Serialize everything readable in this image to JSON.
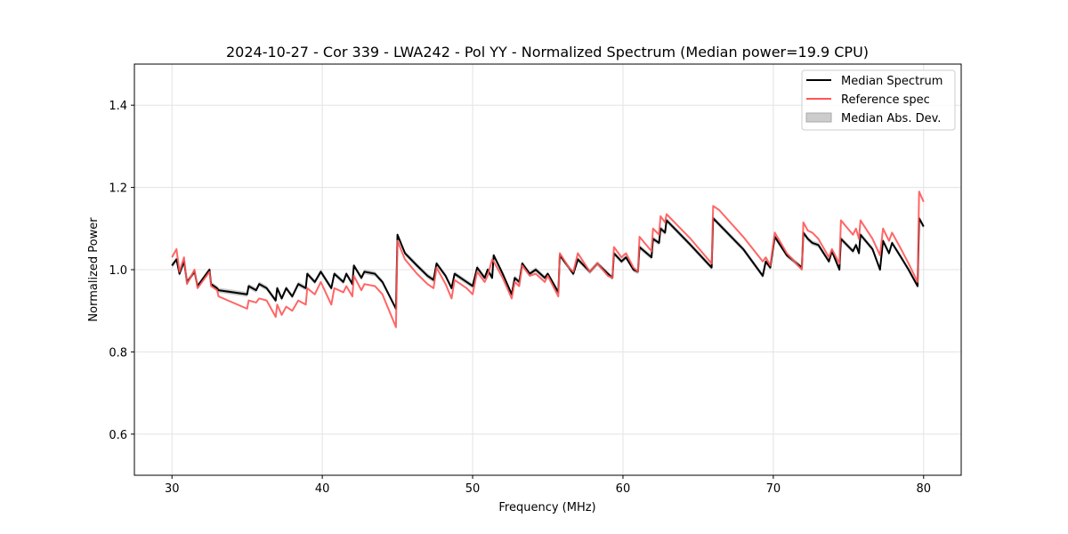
{
  "chart_data": {
    "type": "line",
    "title": "2024-10-27 - Cor 339 - LWA242 - Pol YY - Normalized Spectrum (Median power=19.9 CPU)",
    "xlabel": "Frequency (MHz)",
    "ylabel": "Normalized Power",
    "xlim": [
      27.5,
      82.5
    ],
    "ylim": [
      0.5,
      1.5
    ],
    "xticks": [
      30,
      40,
      50,
      60,
      70,
      80
    ],
    "xtick_labels": [
      "30",
      "40",
      "50",
      "60",
      "70",
      "80"
    ],
    "yticks": [
      0.6,
      0.8,
      1.0,
      1.2,
      1.4
    ],
    "ytick_labels": [
      "0.6",
      "0.8",
      "1.0",
      "1.2",
      "1.4"
    ],
    "grid": true,
    "legend_position": "top-right",
    "legend": [
      "Median Spectrum",
      "Reference spec",
      "Median Abs. Dev."
    ],
    "colors": {
      "median": "#000000",
      "reference": "#ff5555",
      "mad": "#b0b0b0"
    },
    "mad_halfwidth": 0.006,
    "x": [
      30.0,
      30.3,
      30.5,
      30.8,
      31.0,
      31.5,
      31.7,
      32.5,
      32.6,
      33.0,
      33.1,
      35.0,
      35.1,
      35.6,
      35.8,
      36.3,
      36.9,
      37.0,
      37.3,
      37.6,
      38.0,
      38.4,
      38.9,
      39.0,
      39.5,
      39.9,
      40.6,
      40.8,
      41.4,
      41.6,
      42.0,
      42.1,
      42.6,
      42.8,
      43.5,
      44.0,
      44.9,
      45.0,
      45.5,
      46.3,
      47.0,
      47.4,
      47.6,
      48.2,
      48.6,
      48.8,
      49.6,
      50.0,
      50.3,
      50.8,
      51.0,
      51.3,
      51.4,
      52.0,
      52.6,
      52.8,
      53.1,
      53.3,
      53.8,
      54.2,
      54.8,
      55.0,
      55.7,
      55.8,
      56.4,
      56.7,
      57.0,
      57.8,
      58.3,
      59.0,
      59.3,
      59.4,
      59.9,
      60.2,
      60.7,
      61.0,
      61.1,
      61.9,
      62.0,
      62.4,
      62.5,
      62.8,
      62.9,
      64.5,
      65.9,
      66.0,
      66.4,
      68.0,
      69.3,
      69.5,
      69.8,
      70.1,
      70.9,
      71.9,
      72.0,
      72.3,
      72.6,
      73.0,
      73.7,
      73.9,
      74.4,
      74.5,
      75.3,
      75.5,
      75.7,
      75.8,
      76.6,
      77.1,
      77.3,
      77.7,
      77.9,
      78.5,
      79.0,
      79.6,
      79.7,
      80.0
    ],
    "series": [
      {
        "name": "Median Spectrum",
        "values": [
          1.01,
          1.025,
          0.99,
          1.02,
          0.97,
          0.995,
          0.96,
          1.0,
          0.965,
          0.955,
          0.95,
          0.94,
          0.96,
          0.95,
          0.965,
          0.955,
          0.925,
          0.955,
          0.93,
          0.955,
          0.935,
          0.965,
          0.955,
          0.99,
          0.97,
          0.995,
          0.955,
          0.99,
          0.97,
          0.99,
          0.965,
          1.01,
          0.98,
          0.995,
          0.99,
          0.97,
          0.905,
          1.085,
          1.04,
          1.01,
          0.985,
          0.975,
          1.015,
          0.985,
          0.955,
          0.99,
          0.97,
          0.96,
          1.005,
          0.98,
          1.0,
          0.98,
          1.035,
          0.99,
          0.94,
          0.98,
          0.97,
          1.015,
          0.99,
          1.0,
          0.98,
          0.99,
          0.945,
          1.035,
          1.005,
          0.99,
          1.025,
          0.995,
          1.015,
          0.99,
          0.98,
          1.04,
          1.02,
          1.03,
          1.0,
          0.995,
          1.055,
          1.03,
          1.075,
          1.065,
          1.1,
          1.09,
          1.12,
          1.06,
          1.005,
          1.125,
          1.11,
          1.05,
          0.985,
          1.02,
          1.005,
          1.08,
          1.035,
          1.005,
          1.09,
          1.075,
          1.065,
          1.06,
          1.02,
          1.045,
          1.0,
          1.075,
          1.045,
          1.06,
          1.04,
          1.085,
          1.05,
          1.0,
          1.07,
          1.04,
          1.065,
          1.03,
          1.0,
          0.96,
          1.125,
          1.105
        ]
      },
      {
        "name": "Reference spec",
        "values": [
          1.03,
          1.05,
          0.995,
          1.03,
          0.965,
          1.0,
          0.955,
          0.995,
          0.96,
          0.95,
          0.935,
          0.905,
          0.925,
          0.92,
          0.93,
          0.925,
          0.885,
          0.915,
          0.89,
          0.91,
          0.9,
          0.925,
          0.915,
          0.955,
          0.94,
          0.97,
          0.915,
          0.955,
          0.945,
          0.96,
          0.935,
          0.985,
          0.95,
          0.965,
          0.96,
          0.94,
          0.86,
          1.07,
          1.025,
          0.99,
          0.965,
          0.955,
          1.005,
          0.965,
          0.93,
          0.975,
          0.955,
          0.94,
          0.995,
          0.97,
          0.985,
          1.025,
          1.02,
          0.98,
          0.93,
          0.97,
          0.96,
          1.01,
          0.985,
          0.99,
          0.97,
          0.985,
          0.935,
          1.04,
          1.005,
          0.995,
          1.04,
          0.995,
          1.015,
          0.985,
          0.98,
          1.055,
          1.03,
          1.04,
          1.005,
          0.995,
          1.08,
          1.045,
          1.1,
          1.085,
          1.13,
          1.115,
          1.135,
          1.075,
          1.015,
          1.155,
          1.145,
          1.08,
          1.02,
          1.03,
          1.01,
          1.09,
          1.04,
          1.0,
          1.115,
          1.095,
          1.09,
          1.075,
          1.03,
          1.05,
          1.015,
          1.12,
          1.085,
          1.1,
          1.075,
          1.12,
          1.075,
          1.035,
          1.1,
          1.07,
          1.09,
          1.05,
          1.015,
          0.97,
          1.19,
          1.165
        ]
      }
    ]
  }
}
